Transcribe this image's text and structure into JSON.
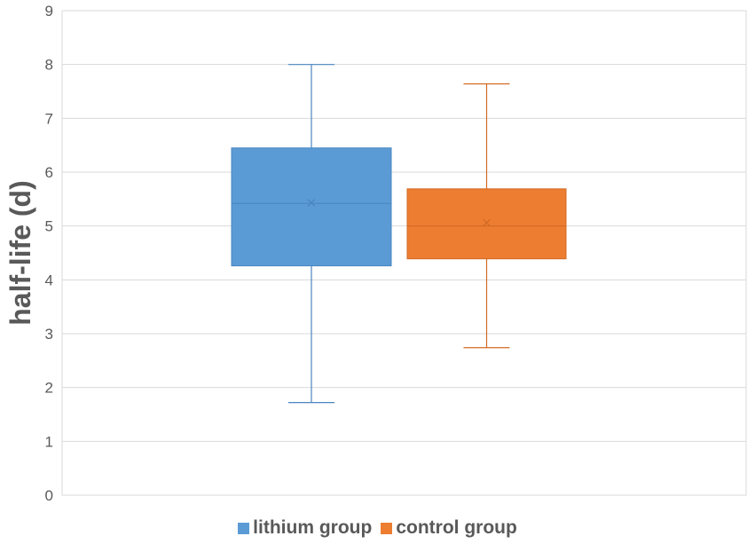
{
  "chart_data": {
    "type": "box",
    "ylabel": "half-life (d)",
    "ylim": [
      0,
      9
    ],
    "yticks": [
      0,
      1,
      2,
      3,
      4,
      5,
      6,
      7,
      8,
      9
    ],
    "grid": true,
    "legend_position": "bottom",
    "series": [
      {
        "name": "lithium group",
        "color": "#5b9bd5",
        "stroke": "#4a86c0",
        "min": 1.72,
        "q1": 4.26,
        "median": 5.42,
        "q3": 6.45,
        "max": 8.0,
        "mean": 5.43
      },
      {
        "name": "control group",
        "color": "#ed7d31",
        "stroke": "#d26a24",
        "min": 2.74,
        "q1": 4.39,
        "median": 5.0,
        "q3": 5.69,
        "max": 7.64,
        "mean": 5.06
      }
    ]
  }
}
